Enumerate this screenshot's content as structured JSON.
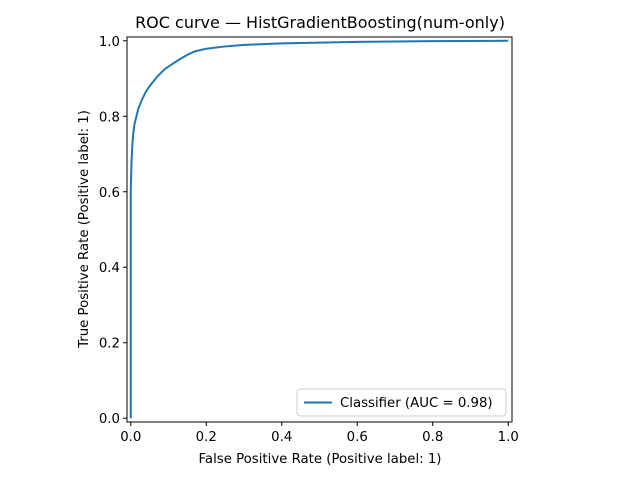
{
  "chart_data": {
    "type": "line",
    "title": "ROC curve — HistGradientBoosting(num-only)",
    "xlabel": "False Positive Rate (Positive label: 1)",
    "ylabel": "True Positive Rate (Positive label: 1)",
    "xlim": [
      -0.01,
      1.01
    ],
    "ylim": [
      -0.01,
      1.01
    ],
    "xticks": [
      "0.0",
      "0.2",
      "0.4",
      "0.6",
      "0.8",
      "1.0"
    ],
    "yticks": [
      "0.0",
      "0.2",
      "0.4",
      "0.6",
      "0.8",
      "1.0"
    ],
    "grid": false,
    "legend_position": "lower-right",
    "series": [
      {
        "name": "Classifier (AUC = 0.98)",
        "color": "#1f77b4",
        "x": [
          0.0,
          0.0,
          0.002,
          0.004,
          0.006,
          0.01,
          0.015,
          0.02,
          0.03,
          0.04,
          0.05,
          0.07,
          0.09,
          0.12,
          0.15,
          0.17,
          0.2,
          0.25,
          0.3,
          0.4,
          0.5,
          0.6,
          0.7,
          0.8,
          0.9,
          1.0
        ],
        "y": [
          0.0,
          0.6,
          0.68,
          0.72,
          0.75,
          0.78,
          0.8,
          0.82,
          0.845,
          0.865,
          0.88,
          0.905,
          0.925,
          0.945,
          0.963,
          0.972,
          0.979,
          0.985,
          0.989,
          0.993,
          0.995,
          0.997,
          0.998,
          0.999,
          0.9995,
          1.0
        ]
      }
    ]
  }
}
